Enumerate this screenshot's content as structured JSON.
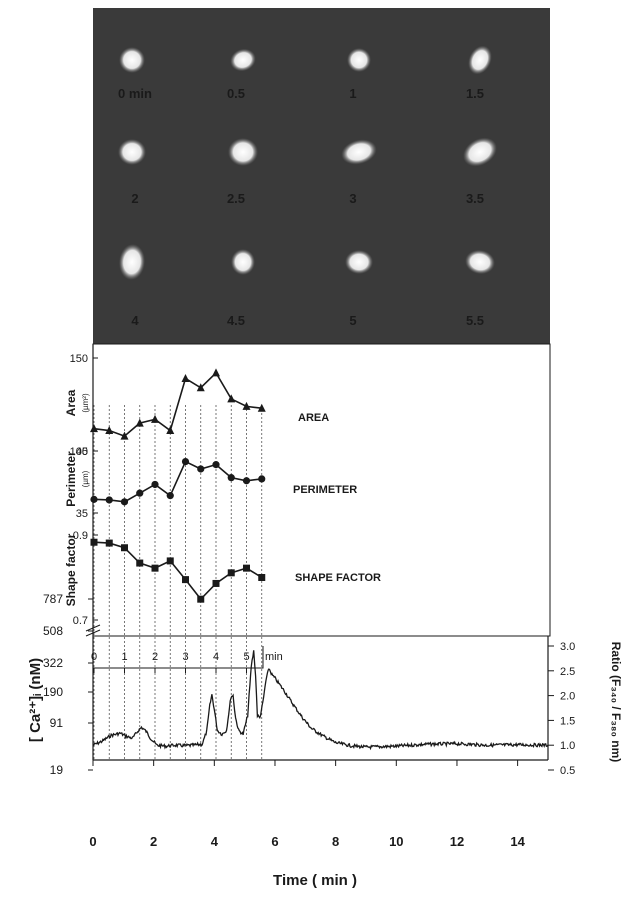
{
  "chart_data": [
    {
      "type": "image-grid",
      "frame_labels": [
        "0 min",
        "0.5",
        "1",
        "1.5",
        "2",
        "2.5",
        "3",
        "3.5",
        "4",
        "4.5",
        "5",
        "5.5"
      ]
    },
    {
      "type": "line",
      "x_unit": "min",
      "x_ticks": [
        "0",
        "1",
        "2",
        "3",
        "4",
        "5"
      ],
      "xlabel_short": "min",
      "x": [
        0,
        0.5,
        1,
        1.5,
        2,
        2.5,
        3,
        3.5,
        4,
        4.5,
        5,
        5.5
      ],
      "panels": [
        {
          "axis_label": "Area",
          "unit": "(µm²)",
          "series_label": "AREA",
          "marker": "triangle",
          "yticks": [
            "100",
            "150"
          ],
          "ylim": [
            100,
            150
          ],
          "values": [
            112,
            111,
            108,
            115,
            117,
            111,
            139,
            134,
            142,
            128,
            124,
            123
          ]
        },
        {
          "axis_label": "Perimeter",
          "unit": "(µm)",
          "series_label": "PERIMETER",
          "marker": "circle",
          "yticks": [
            "35",
            "45"
          ],
          "ylim": [
            35,
            45
          ],
          "values": [
            37.2,
            37.1,
            36.8,
            38.2,
            39.6,
            37.8,
            43.3,
            42.1,
            42.8,
            40.7,
            40.2,
            40.5
          ]
        },
        {
          "axis_label": "Shape factor",
          "unit": "",
          "series_label": "SHAPE FACTOR",
          "marker": "square",
          "yticks": [
            "0.7",
            "0.9"
          ],
          "ylim": [
            0.7,
            0.9
          ],
          "values": [
            0.883,
            0.881,
            0.87,
            0.834,
            0.822,
            0.839,
            0.795,
            0.749,
            0.786,
            0.811,
            0.822,
            0.8
          ]
        }
      ]
    },
    {
      "type": "line",
      "ylabel_left": "[ Ca²⁺]ᵢ  (nM)",
      "ylabel_right": "Ratio (F₃₄₀ / F₃₈₀ nm)",
      "xlabel": "Time  ( min )",
      "left_ticks": [
        "19",
        "91",
        "190",
        "322",
        "508",
        "787"
      ],
      "right_ticks": [
        "0.5",
        "1.0",
        "1.5",
        "2.0",
        "2.5",
        "3.0"
      ],
      "ratio_ylim": [
        0.5,
        3.0
      ],
      "xlim": [
        0,
        15
      ],
      "x_ticks": [
        "0",
        "2",
        "4",
        "6",
        "8",
        "10",
        "12",
        "14"
      ],
      "trace_time": [
        0,
        0.3,
        0.6,
        0.9,
        1.1,
        1.3,
        1.5,
        1.6,
        1.75,
        1.9,
        2.1,
        2.4,
        2.7,
        3.0,
        3.3,
        3.6,
        3.75,
        3.85,
        3.92,
        4.0,
        4.1,
        4.25,
        4.4,
        4.55,
        4.62,
        4.7,
        4.8,
        4.95,
        5.1,
        5.22,
        5.3,
        5.36,
        5.42,
        5.5,
        5.6,
        5.7,
        5.8,
        5.9,
        6.0,
        6.3,
        6.6,
        6.9,
        7.2,
        7.6,
        8.0,
        8.5,
        9.0,
        10.0,
        11.0,
        12.0,
        13.0,
        14.0,
        15.0
      ],
      "trace_ratio": [
        1.0,
        1.08,
        1.2,
        1.24,
        1.18,
        1.14,
        1.3,
        1.36,
        1.28,
        1.14,
        1.0,
        0.98,
        1.0,
        0.99,
        1.0,
        1.02,
        1.28,
        1.8,
        2.02,
        1.72,
        1.3,
        1.22,
        1.3,
        1.98,
        2.0,
        1.55,
        1.3,
        1.22,
        1.6,
        2.6,
        2.9,
        2.4,
        1.6,
        1.55,
        1.85,
        2.3,
        2.55,
        2.42,
        2.35,
        2.1,
        1.82,
        1.56,
        1.34,
        1.18,
        1.05,
        0.99,
        0.96,
        0.98,
        1.02,
        1.03,
        1.0,
        1.01,
        1.0
      ]
    }
  ]
}
